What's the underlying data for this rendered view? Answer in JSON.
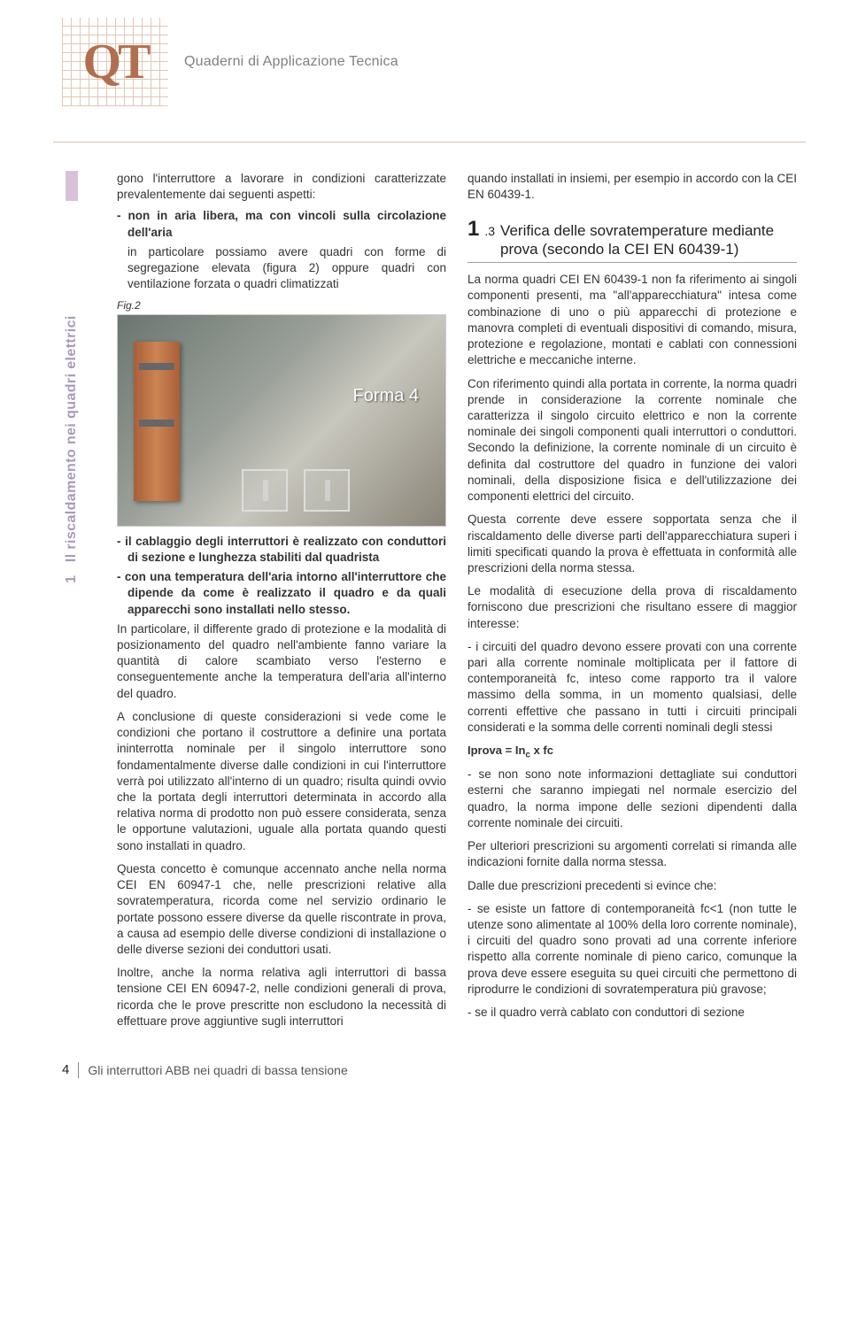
{
  "header": {
    "logo_letters": "QT",
    "title": "Quaderni di Applicazione Tecnica"
  },
  "sidebar": {
    "chapter_number": "1",
    "chapter_title": "Il riscaldamento nei quadri elettrici"
  },
  "left_column": {
    "intro": "gono l'interruttore a lavorare in condizioni caratterizzate prevalentemente dai seguenti aspetti:",
    "bullet1": "- non in aria libera, ma con vincoli sulla circolazione dell'aria",
    "bullet1_sub": "in particolare possiamo avere quadri con forme di segregazione elevata (figura 2) oppure quadri con ventilazione forzata o quadri climatizzati",
    "fig_label": "Fig.2",
    "forma_label": "Forma 4",
    "bullet2": "- il cablaggio degli interruttori è realizzato con conduttori di sezione e lunghezza stabiliti dal quadrista",
    "bullet3": "- con una temperatura dell'aria intorno all'interruttore che dipende da come è realizzato il quadro e da quali apparecchi sono installati nello stesso.",
    "para1": "In particolare, il differente grado di protezione e la modalità di posizionamento del quadro nell'ambiente fanno variare la quantità di calore scambiato verso l'esterno e conseguentemente anche la temperatura dell'aria all'interno del quadro.",
    "para2": "A conclusione di queste considerazioni si vede come le condizioni che portano il costruttore a definire una portata ininterrotta nominale per il singolo interruttore sono fondamentalmente diverse dalle condizioni in cui l'interruttore verrà poi utilizzato all'interno di un quadro; risulta quindi ovvio che la portata degli interruttori determinata in accordo alla relativa norma di prodotto non può essere considerata, senza le opportune valutazioni, uguale alla portata quando questi sono installati in quadro.",
    "para3": "Questa concetto è comunque accennato anche nella norma CEI EN 60947-1 che, nelle prescrizioni relative alla sovratemperatura, ricorda come nel servizio ordinario le portate possono essere diverse da quelle riscontrate in prova, a causa ad esempio delle diverse condizioni di installazione o delle diverse sezioni dei conduttori usati.",
    "para4": "Inoltre, anche la norma relativa agli interruttori di bassa tensione CEI EN 60947-2, nelle condizioni generali di prova, ricorda che le prove prescritte non escludono la necessità di effettuare prove aggiuntive sugli interruttori"
  },
  "right_column": {
    "cont": "quando installati in insiemi, per esempio in accordo con la CEI EN 60439-1.",
    "section_number": "1",
    "section_sub": ".3",
    "section_title": "Verifica delle sovratemperature mediante prova (secondo la CEI EN 60439-1)",
    "para1": "La norma quadri CEI EN 60439-1 non fa riferimento ai singoli componenti presenti, ma \"all'apparecchiatura\" intesa come combinazione di uno o più apparecchi di protezione e manovra completi di eventuali dispositivi di comando, misura, protezione e regolazione, montati e cablati con connessioni elettriche e meccaniche interne.",
    "para2": "Con riferimento quindi alla portata in corrente, la norma quadri prende in considerazione la corrente nominale che caratterizza il singolo circuito elettrico e non la corrente nominale dei singoli componenti quali interruttori o conduttori. Secondo la definizione, la corrente nominale di un circuito è definita dal costruttore del quadro in funzione dei valori nominali, della disposizione fisica e dell'utilizzazione dei componenti elettrici del circuito.",
    "para3": "Questa corrente deve essere sopportata senza che il riscaldamento delle diverse parti dell'apparecchiatura superi i limiti specificati quando la prova è effettuata in conformità alle prescrizioni della norma stessa.",
    "para4": "Le modalità di esecuzione della prova di riscaldamento forniscono due prescrizioni che risultano essere di maggior interesse:",
    "bullet1": "- i circuiti del quadro devono essere provati con una corrente pari alla corrente nominale moltiplicata per il fattore di contemporaneità fc, inteso come rapporto tra il valore massimo della somma, in un momento qualsiasi, delle correnti effettive che passano in tutti i circuiti principali considerati e la somma delle correnti nominali degli stessi",
    "formula": "Iprova = Inc x fc",
    "bullet2": "- se non sono note informazioni dettagliate sui conduttori esterni che saranno impiegati nel normale esercizio del quadro, la norma impone delle sezioni dipendenti dalla corrente nominale dei circuiti.",
    "para5": "Per ulteriori prescrizioni su argomenti correlati si rimanda alle indicazioni fornite dalla norma stessa.",
    "para6": "Dalle due prescrizioni precedenti si evince che:",
    "bullet3": "- se esiste un fattore di contemporaneità fc<1 (non tutte le utenze sono alimentate al 100% della loro corrente nominale), i circuiti del quadro sono provati ad una corrente inferiore rispetto alla corrente nominale di pieno carico, comunque la prova deve essere eseguita su quei circuiti che permettono di riprodurre le condizioni di sovratemperatura più gravose;",
    "bullet4": "- se il quadro verrà cablato con conduttori di sezione"
  },
  "footer": {
    "page_number": "4",
    "title": "Gli interruttori ABB nei quadri di bassa tensione"
  },
  "colors": {
    "accent_peach": "#d9bfa9",
    "sidebar_lavender": "#a89ab8",
    "copper": "#cd8452"
  }
}
